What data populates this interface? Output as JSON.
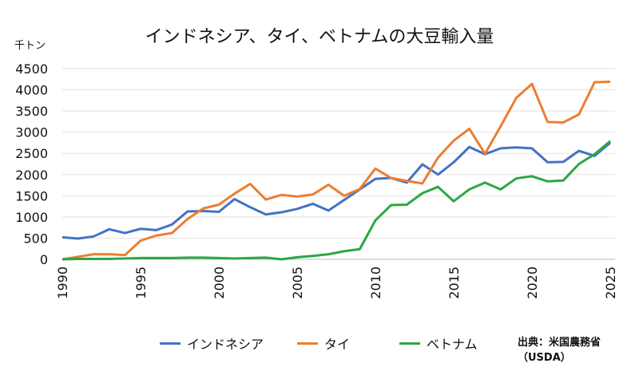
{
  "chart_data": {
    "type": "line",
    "title": "インドネシア、タイ、ベトナムの大豆輸入量",
    "ylabel": "千トン",
    "xlim": [
      1990,
      2025
    ],
    "ylim": [
      0,
      4500
    ],
    "yticks": [
      0,
      500,
      1000,
      1500,
      2000,
      2500,
      3000,
      3500,
      4000,
      4500
    ],
    "xticks": [
      1990,
      1995,
      2000,
      2005,
      2010,
      2015,
      2020,
      2025
    ],
    "grid": true,
    "legend": "bottom",
    "x": [
      1990,
      1991,
      1992,
      1993,
      1994,
      1995,
      1996,
      1997,
      1998,
      1999,
      2000,
      2001,
      2002,
      2003,
      2004,
      2005,
      2006,
      2007,
      2008,
      2009,
      2010,
      2011,
      2012,
      2013,
      2014,
      2015,
      2016,
      2017,
      2018,
      2019,
      2020,
      2021,
      2022,
      2023,
      2024,
      2025
    ],
    "series": [
      {
        "name": "インドネシア",
        "color": "#4472c4",
        "values": [
          520,
          490,
          540,
          710,
          620,
          720,
          690,
          820,
          1130,
          1140,
          1120,
          1420,
          1230,
          1060,
          1110,
          1190,
          1310,
          1150,
          1400,
          1650,
          1900,
          1920,
          1810,
          2240,
          2000,
          2290,
          2650,
          2480,
          2620,
          2640,
          2620,
          2290,
          2300,
          2560,
          2440,
          2750
        ]
      },
      {
        "name": "タイ",
        "color": "#ed7d31",
        "values": [
          0,
          60,
          120,
          120,
          100,
          440,
          560,
          620,
          950,
          1200,
          1290,
          1550,
          1780,
          1410,
          1520,
          1480,
          1530,
          1760,
          1500,
          1660,
          2140,
          1920,
          1850,
          1790,
          2400,
          2800,
          3080,
          2490,
          3140,
          3810,
          4140,
          3240,
          3230,
          3420,
          4180,
          4190
        ]
      },
      {
        "name": "ベトナム",
        "color": "#2ca843",
        "values": [
          0,
          10,
          10,
          10,
          20,
          30,
          30,
          30,
          40,
          40,
          30,
          20,
          30,
          40,
          0,
          50,
          80,
          120,
          190,
          240,
          920,
          1280,
          1290,
          1560,
          1710,
          1370,
          1650,
          1810,
          1650,
          1910,
          1960,
          1840,
          1860,
          2250,
          2480,
          2790
        ]
      }
    ]
  },
  "source": {
    "line1": "出典：米国農務省",
    "line2": "（USDA）"
  }
}
